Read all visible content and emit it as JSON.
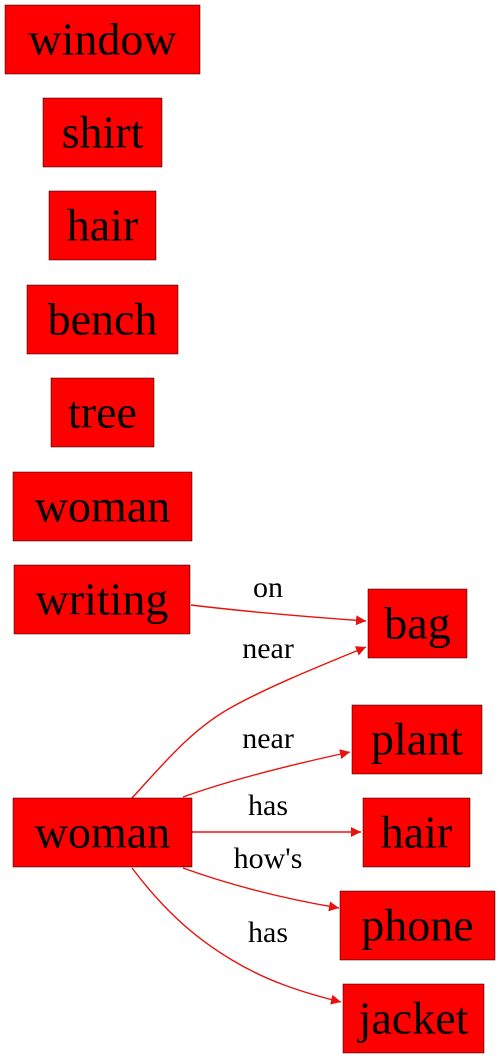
{
  "colors": {
    "node_fill": "#ff0000",
    "edge": "#e8120c",
    "text": "#000000"
  },
  "nodes": [
    {
      "id": "n_window",
      "label": "window"
    },
    {
      "id": "n_shirt",
      "label": "shirt"
    },
    {
      "id": "n_hair1",
      "label": "hair"
    },
    {
      "id": "n_bench",
      "label": "bench"
    },
    {
      "id": "n_tree",
      "label": "tree"
    },
    {
      "id": "n_woman1",
      "label": "woman"
    },
    {
      "id": "n_writing",
      "label": "writing"
    },
    {
      "id": "n_bag",
      "label": "bag"
    },
    {
      "id": "n_woman2",
      "label": "woman"
    },
    {
      "id": "n_plant",
      "label": "plant"
    },
    {
      "id": "n_hair2",
      "label": "hair"
    },
    {
      "id": "n_phone",
      "label": "phone"
    },
    {
      "id": "n_jacket",
      "label": "jacket"
    }
  ],
  "edges": [
    {
      "from": "n_writing",
      "to": "n_bag",
      "label": "on"
    },
    {
      "from": "n_woman2",
      "to": "n_bag",
      "label": "near"
    },
    {
      "from": "n_woman2",
      "to": "n_plant",
      "label": "near"
    },
    {
      "from": "n_woman2",
      "to": "n_hair2",
      "label": "has"
    },
    {
      "from": "n_woman2",
      "to": "n_phone",
      "label": "how's"
    },
    {
      "from": "n_woman2",
      "to": "n_jacket",
      "label": "has"
    }
  ]
}
